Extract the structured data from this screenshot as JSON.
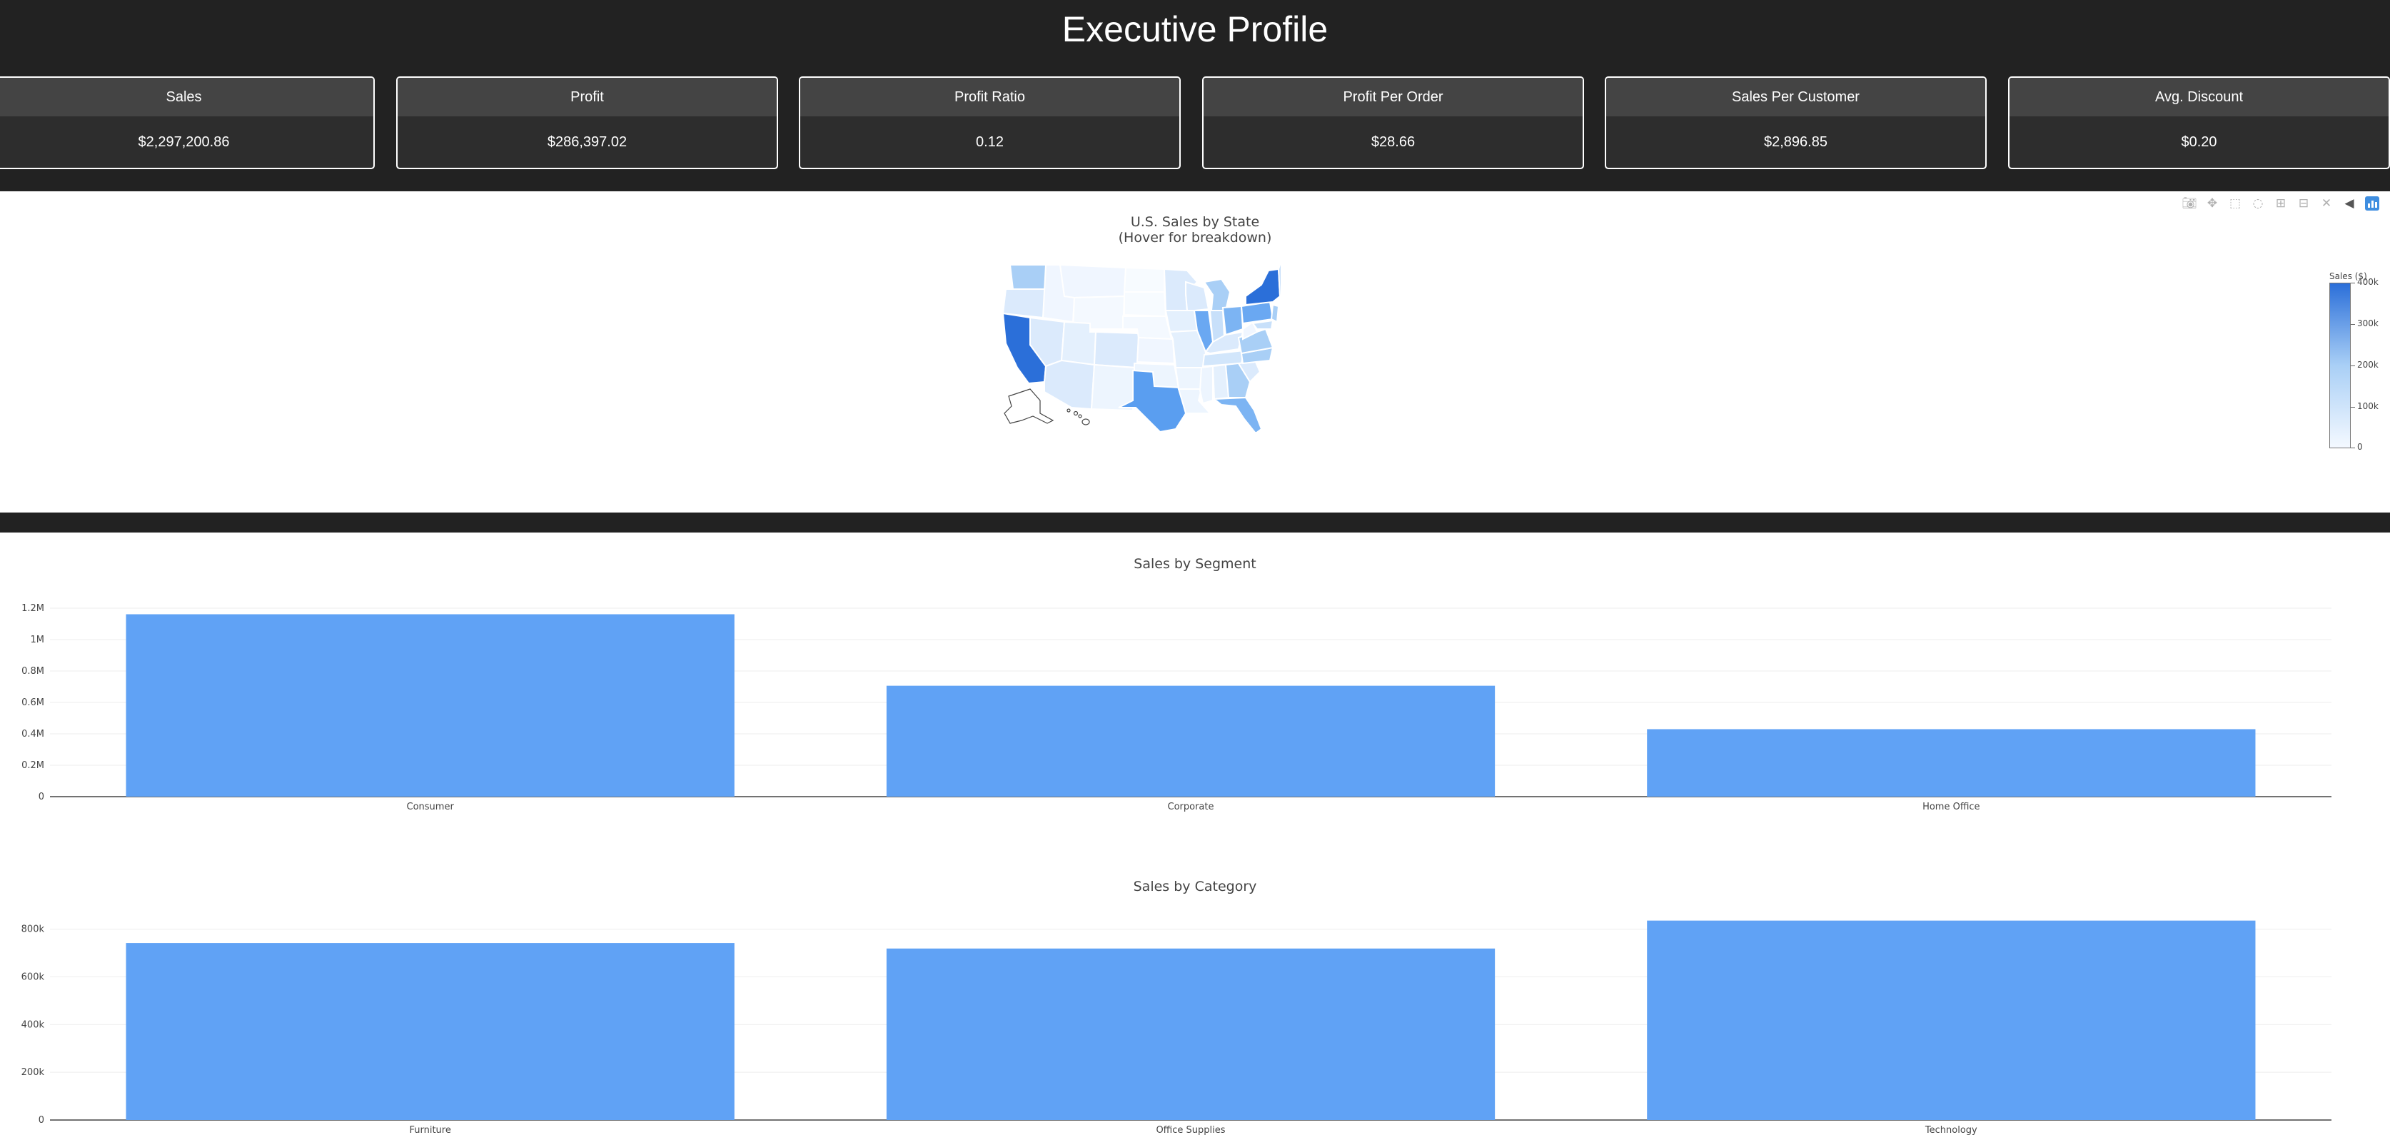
{
  "header": {
    "title": "Executive Profile"
  },
  "kpis": [
    {
      "label": "Sales",
      "value": "$2,297,200.86"
    },
    {
      "label": "Profit",
      "value": "$286,397.02"
    },
    {
      "label": "Profit Ratio",
      "value": "0.12"
    },
    {
      "label": "Profit Per Order",
      "value": "$28.66"
    },
    {
      "label": "Sales Per Customer",
      "value": "$2,896.85"
    },
    {
      "label": "Avg. Discount",
      "value": "$0.20"
    }
  ],
  "toolbar": {
    "icons": [
      "camera-icon",
      "pan-icon",
      "box-select-icon",
      "lasso-icon",
      "zoom-in-icon",
      "zoom-out-icon",
      "reset-axes-icon",
      "hover-icon",
      "plotly-logo-icon"
    ]
  },
  "map": {
    "title_line1": "U.S. Sales by State",
    "title_line2": "(Hover for breakdown)",
    "colorbar_title": "Sales ($)",
    "colorbar_ticks": [
      "400k",
      "300k",
      "200k",
      "100k",
      "0"
    ],
    "colors": {
      "low": "#f4f9ff",
      "mid": "#a9cff6",
      "high": "#2b6fd9"
    }
  },
  "chart_data": [
    {
      "type": "bar",
      "title": "Sales by Segment",
      "categories": [
        "Consumer",
        "Corporate",
        "Home Office"
      ],
      "values": [
        1161401,
        706146,
        429653
      ],
      "ylim": [
        0,
        1200000
      ],
      "yticks": [
        "0",
        "0.2M",
        "0.4M",
        "0.6M",
        "0.8M",
        "1M",
        "1.2M"
      ],
      "ytick_values": [
        0,
        200000,
        400000,
        600000,
        800000,
        1000000,
        1200000
      ],
      "grid": true,
      "bar_color": "#60a2f5"
    },
    {
      "type": "bar",
      "title": "Sales by Category",
      "categories": [
        "Furniture",
        "Office Supplies",
        "Technology"
      ],
      "values": [
        742000,
        719047,
        836154
      ],
      "ylim": [
        0,
        850000
      ],
      "yticks": [
        "0",
        "200k",
        "400k",
        "600k",
        "800k"
      ],
      "ytick_values": [
        0,
        200000,
        400000,
        600000,
        800000
      ],
      "grid": true,
      "bar_color": "#60a2f5"
    }
  ]
}
